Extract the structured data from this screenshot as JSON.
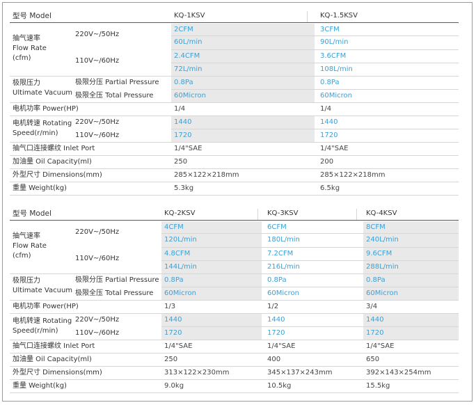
{
  "spec_tables": [
    {
      "header_label": "型号 Model",
      "models": [
        "KQ-1KSV",
        "KQ-1.5KSV"
      ],
      "flow_label": [
        "抽气速率",
        "Flow Rate",
        "(cfm)"
      ],
      "flow_220_label": "220V~/50Hz",
      "flow_110_label": "110V~/60Hz",
      "flow_220_cfm": [
        "2CFM",
        "3CFM"
      ],
      "flow_220_lmin": [
        "60L/min",
        "90L/min"
      ],
      "flow_110_cfm": [
        "2.4CFM",
        "3.6CFM"
      ],
      "flow_110_lmin": [
        "72L/min",
        "108L/min"
      ],
      "vacuum_label": [
        "极限压力",
        "Ultimate Vacuum"
      ],
      "partial_label": "极限分压 Partial Pressure",
      "total_label": "极限全压 Total Pressure",
      "partial": [
        "0.8Pa",
        "0.8Pa"
      ],
      "total": [
        "60Micron",
        "60Micron"
      ],
      "power_label": "电机功率 Power(HP)",
      "power": [
        "1/4",
        "1/4"
      ],
      "speed_label": [
        "电机转速 Rotating",
        "Speed(r/min)"
      ],
      "speed_220_label": "220V~/50Hz",
      "speed_110_label": "110V~/60Hz",
      "speed_220": [
        "1440",
        "1440"
      ],
      "speed_110": [
        "1720",
        "1720"
      ],
      "inlet_label": "抽气口连接螺纹 Inlet Port",
      "inlet": [
        "1/4\"SAE",
        "1/4\"SAE"
      ],
      "oil_label": "加油量 Oil Capacity(ml)",
      "oil": [
        "250",
        "200"
      ],
      "dim_label": "外型尺寸 Dimensions(mm)",
      "dim": [
        "285×122×218mm",
        "285×122×218mm"
      ],
      "weight_label": "重量 Weight(kg)",
      "weight": [
        "5.3kg",
        "6.5kg"
      ]
    },
    {
      "header_label": "型号 Model",
      "models": [
        "KQ-2KSV",
        "KQ-3KSV",
        "KQ-4KSV"
      ],
      "flow_label": [
        "抽气速率",
        "Flow Rate",
        "(cfm)"
      ],
      "flow_220_label": "220V~/50Hz",
      "flow_110_label": "110V~/60Hz",
      "flow_220_cfm": [
        "4CFM",
        "6CFM",
        "8CFM"
      ],
      "flow_220_lmin": [
        "120L/min",
        "180L/min",
        "240L/min"
      ],
      "flow_110_cfm": [
        "4.8CFM",
        "7.2CFM",
        "9.6CFM"
      ],
      "flow_110_lmin": [
        "144L/min",
        "216L/min",
        "288L/min"
      ],
      "vacuum_label": [
        "极限压力",
        "Ultimate Vacuum"
      ],
      "partial_label": "极限分压 Partial Pressure",
      "total_label": "极限全压 Total Pressure",
      "partial": [
        "0.8Pa",
        "0.8Pa",
        "0.8Pa"
      ],
      "total": [
        "60Micron",
        "60Micron",
        "60Micron"
      ],
      "power_label": "电机功率 Power(HP)",
      "power": [
        "1/3",
        "1/2",
        "3/4"
      ],
      "speed_label": [
        "电机转速 Rotating",
        "Speed(r/min)"
      ],
      "speed_220_label": "220V~/50Hz",
      "speed_110_label": "110V~/60Hz",
      "speed_220": [
        "1440",
        "1440",
        "1440"
      ],
      "speed_110": [
        "1720",
        "1720",
        "1720"
      ],
      "inlet_label": "抽气口连接螺纹 Inlet Port",
      "inlet": [
        "1/4\"SAE",
        "1/4\"SAE",
        "1/4\"SAE"
      ],
      "oil_label": "加油量 Oil Capacity(ml)",
      "oil": [
        "250",
        "400",
        "650"
      ],
      "dim_label": "外型尺寸 Dimensions(mm)",
      "dim": [
        "313×122×230mm",
        "345×137×243mm",
        "392×143×254mm"
      ],
      "weight_label": "重量 Weight(kg)",
      "weight": [
        "9.0kg",
        "10.5kg",
        "15.5kg"
      ]
    }
  ],
  "colors": {
    "value_blue": "#3aa0d6",
    "shade": "#e9e9e9",
    "text": "#333333"
  }
}
